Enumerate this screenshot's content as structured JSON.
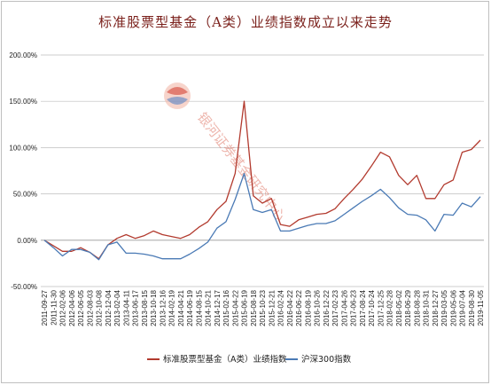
{
  "chart_data": {
    "type": "line",
    "title": "标准股票型基金（A类）业绩指数成立以来走势",
    "xlabel": "",
    "ylabel": "",
    "ylim": [
      -50,
      200
    ],
    "yticks": [
      "-50.00%",
      "0.00%",
      "50.00%",
      "100.00%",
      "150.00%",
      "200.00%"
    ],
    "ytick_values": [
      -50,
      0,
      50,
      100,
      150,
      200
    ],
    "grid": "horizontal",
    "legend_position": "bottom",
    "x": [
      "2011-09-27",
      "2011-11-30",
      "2012-02-06",
      "2012-04-06",
      "2012-06-05",
      "2012-08-03",
      "2012-10-08",
      "2012-12-04",
      "2013-02-04",
      "2013-04-11",
      "2013-06-17",
      "2013-08-15",
      "2013-10-18",
      "2013-12-16",
      "2014-02-19",
      "2014-04-21",
      "2014-06-19",
      "2014-08-15",
      "2014-10-21",
      "2014-12-17",
      "2015-02-16",
      "2015-04-22",
      "2015-06-19",
      "2015-08-18",
      "2015-10-23",
      "2015-12-21",
      "2016-02-24",
      "2016-04-22",
      "2016-06-22",
      "2016-08-19",
      "2016-10-26",
      "2016-12-22",
      "2017-02-23",
      "2017-04-26",
      "2017-06-23",
      "2017-08-24",
      "2017-10-24",
      "2017-12-25",
      "2018-02-28",
      "2018-05-02",
      "2018-06-29",
      "2018-08-28",
      "2018-10-31",
      "2018-12-27",
      "2019-03-05",
      "2019-05-06",
      "2019-07-04",
      "2019-08-30",
      "2019-11-05"
    ],
    "series": [
      {
        "name": "标准股票型基金（A类）业绩指数",
        "color": "#b23a2e",
        "values": [
          0,
          -6,
          -12,
          -12,
          -8,
          -13,
          -20,
          -5,
          2,
          6,
          2,
          5,
          10,
          6,
          4,
          2,
          6,
          14,
          20,
          33,
          42,
          72,
          150,
          48,
          40,
          45,
          17,
          15,
          22,
          25,
          28,
          29,
          34,
          45,
          55,
          66,
          80,
          95,
          90,
          70,
          60,
          70,
          45,
          45,
          60,
          65,
          95,
          98,
          108
        ]
      },
      {
        "name": "沪深300指数",
        "color": "#4a7ab5",
        "values": [
          0,
          -8,
          -17,
          -10,
          -10,
          -13,
          -21,
          -5,
          -2,
          -14,
          -14,
          -15,
          -17,
          -20,
          -20,
          -20,
          -15,
          -9,
          -2,
          13,
          20,
          44,
          72,
          33,
          30,
          33,
          10,
          10,
          13,
          16,
          18,
          18,
          21,
          28,
          35,
          42,
          48,
          55,
          46,
          35,
          28,
          27,
          22,
          10,
          28,
          27,
          40,
          36,
          47
        ]
      }
    ]
  },
  "watermark": {
    "text": "银河证券基金研究中心"
  }
}
